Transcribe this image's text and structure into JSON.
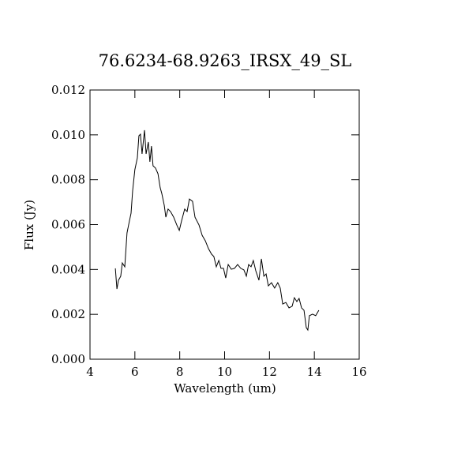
{
  "chart_data": {
    "type": "line",
    "title": "76.6234-68.9263_IRSX_49_SL",
    "x_label": "Wavelength (um)",
    "y_label": "Flux (Jy)",
    "xlim": [
      4,
      16
    ],
    "xticks": [
      4,
      6,
      8,
      10,
      12,
      14,
      16
    ],
    "ylim": [
      0,
      0.012
    ],
    "yticks": [
      {
        "value": 0,
        "label": "0.000"
      },
      {
        "value": 0.002,
        "label": "0.002"
      },
      {
        "value": 0.004,
        "label": "0.004"
      },
      {
        "value": 0.006,
        "label": "0.006"
      },
      {
        "value": 0.008,
        "label": "0.008"
      },
      {
        "value": 0.01,
        "label": "0.010"
      },
      {
        "value": 0.012,
        "label": "0.012"
      }
    ],
    "color": "#000000",
    "x": [
      5.13,
      5.2,
      5.27,
      5.37,
      5.44,
      5.55,
      5.65,
      5.72,
      5.83,
      5.9,
      6.0,
      6.11,
      6.18,
      6.25,
      6.32,
      6.43,
      6.5,
      6.6,
      6.67,
      6.74,
      6.81,
      6.92,
      7.03,
      7.13,
      7.2,
      7.31,
      7.38,
      7.48,
      7.59,
      7.73,
      7.87,
      7.98,
      8.08,
      8.22,
      8.33,
      8.43,
      8.57,
      8.68,
      8.86,
      9.0,
      9.14,
      9.28,
      9.42,
      9.52,
      9.63,
      9.74,
      9.84,
      9.95,
      10.05,
      10.16,
      10.3,
      10.44,
      10.58,
      10.72,
      10.86,
      10.97,
      11.07,
      11.18,
      11.28,
      11.39,
      11.53,
      11.64,
      11.75,
      11.85,
      11.95,
      12.09,
      12.23,
      12.37,
      12.48,
      12.59,
      12.73,
      12.87,
      13.01,
      13.11,
      13.22,
      13.32,
      13.43,
      13.54,
      13.64,
      13.71,
      13.78,
      13.92,
      14.06,
      14.2
    ],
    "values": [
      0.00405,
      0.00313,
      0.00352,
      0.0037,
      0.00429,
      0.00412,
      0.00563,
      0.00598,
      0.00651,
      0.0075,
      0.00845,
      0.00897,
      0.00996,
      0.01003,
      0.00915,
      0.01021,
      0.00915,
      0.00968,
      0.0088,
      0.0095,
      0.00862,
      0.00852,
      0.00827,
      0.00764,
      0.00739,
      0.00686,
      0.00633,
      0.00669,
      0.00658,
      0.00633,
      0.00598,
      0.00574,
      0.00616,
      0.00669,
      0.00658,
      0.00714,
      0.00704,
      0.00633,
      0.00598,
      0.00552,
      0.00528,
      0.00493,
      0.00468,
      0.00458,
      0.00412,
      0.0044,
      0.00405,
      0.00405,
      0.00362,
      0.00422,
      0.00401,
      0.00405,
      0.00422,
      0.00405,
      0.00398,
      0.0037,
      0.00422,
      0.00412,
      0.0044,
      0.00394,
      0.00352,
      0.00447,
      0.0037,
      0.0038,
      0.00327,
      0.00341,
      0.00317,
      0.00341,
      0.00317,
      0.00246,
      0.00253,
      0.00229,
      0.00236,
      0.00274,
      0.00257,
      0.00271,
      0.00229,
      0.00218,
      0.00141,
      0.0013,
      0.00194,
      0.00201,
      0.00194,
      0.00218
    ]
  }
}
